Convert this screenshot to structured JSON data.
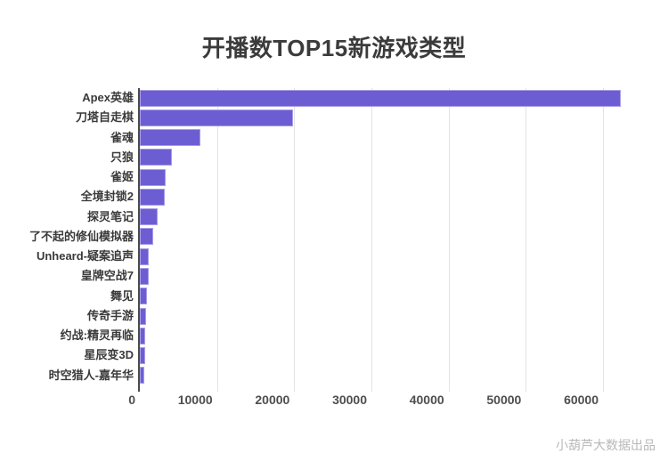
{
  "header": {
    "title": "开播数TOP15新游戏类型"
  },
  "footer": {
    "credit": "小葫芦大数据出品"
  },
  "chart_data": {
    "type": "bar",
    "orientation": "horizontal",
    "title": "开播数TOP15新游戏类型",
    "categories": [
      "Apex英雄",
      "刀塔自走棋",
      "雀魂",
      "只狼",
      "雀姬",
      "全境封锁2",
      "探灵笔记",
      "了不起的修仙模拟器",
      "Unheard-疑案追声",
      "皇牌空战7",
      "舞见",
      "传奇手游",
      "约战:精灵再临",
      "星辰变3D",
      "时空猎人-嘉年华"
    ],
    "values": [
      62300,
      19900,
      7800,
      4200,
      3300,
      3200,
      2300,
      1700,
      1200,
      1100,
      900,
      800,
      700,
      650,
      600
    ],
    "x_ticks": [
      0,
      10000,
      20000,
      30000,
      40000,
      50000,
      60000
    ],
    "xlim": [
      0,
      63300
    ],
    "xlabel": "",
    "ylabel": "",
    "grid": true,
    "legend": false,
    "colors": {
      "bar_fill": "#6C5ED2",
      "bar_border": "#A79DE6",
      "gridline": "#E3E3E3",
      "axis_line": "#4A4A4A",
      "category_label": "#3A3A3A",
      "tick_label": "#4E4E4E",
      "title": "#3B3B3B",
      "footer": "#B8B8B8"
    }
  }
}
